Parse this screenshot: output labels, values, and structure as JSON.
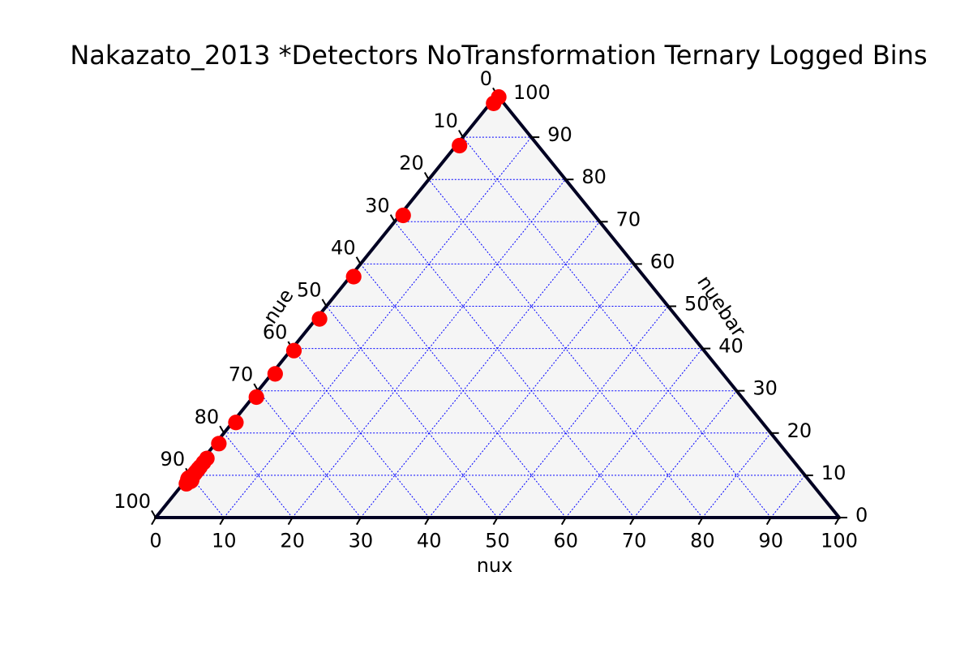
{
  "chart_data": {
    "type": "scatter",
    "subtype": "ternary",
    "title": "Nakazato_2013 *Detectors NoTransformation Ternary Logged Bins",
    "axes": {
      "bottom": {
        "label": "nux",
        "ticks": [
          "0",
          "10",
          "20",
          "30",
          "40",
          "50",
          "60",
          "70",
          "80",
          "90",
          "100"
        ]
      },
      "left": {
        "label": "nue",
        "ticks": [
          "0",
          "10",
          "20",
          "30",
          "40",
          "50",
          "60",
          "70",
          "80",
          "90",
          "100"
        ]
      },
      "right": {
        "label": "nuebar",
        "ticks": [
          "0",
          "10",
          "20",
          "30",
          "40",
          "50",
          "60",
          "70",
          "80",
          "90",
          "100"
        ]
      }
    },
    "scale": [
      0,
      100
    ],
    "grid": true,
    "colors": {
      "marker": "#ff0000",
      "grid": "#0000ff",
      "triangle_fill": "#f5f5f5",
      "triangle_edge": "#000022"
    },
    "points": [
      {
        "nux": 0.5,
        "nuebar": 99.5,
        "nue": 0.0,
        "size": 12
      },
      {
        "nux": 0.5,
        "nuebar": 98.0,
        "nue": 1.5,
        "size": 12
      },
      {
        "nux": 0.5,
        "nuebar": 88.0,
        "nue": 11.5,
        "size": 12
      },
      {
        "nux": 0.5,
        "nuebar": 71.5,
        "nue": 28.0,
        "size": 12
      },
      {
        "nux": 0.5,
        "nuebar": 57.0,
        "nue": 42.5,
        "size": 12
      },
      {
        "nux": 0.5,
        "nuebar": 47.0,
        "nue": 52.5,
        "size": 12
      },
      {
        "nux": 0.5,
        "nuebar": 39.5,
        "nue": 60.0,
        "size": 12
      },
      {
        "nux": 0.5,
        "nuebar": 34.0,
        "nue": 65.5,
        "size": 12
      },
      {
        "nux": 0.5,
        "nuebar": 28.5,
        "nue": 71.0,
        "size": 12
      },
      {
        "nux": 0.5,
        "nuebar": 22.5,
        "nue": 77.0,
        "size": 12
      },
      {
        "nux": 0.5,
        "nuebar": 17.5,
        "nue": 82.0,
        "size": 12
      },
      {
        "nux": 0.5,
        "nuebar": 14.0,
        "nue": 85.5,
        "size": 12
      },
      {
        "nux": 0.5,
        "nuebar": 13.0,
        "nue": 86.5,
        "size": 12
      },
      {
        "nux": 0.5,
        "nuebar": 12.0,
        "nue": 87.5,
        "size": 12
      },
      {
        "nux": 0.5,
        "nuebar": 11.5,
        "nue": 88.0,
        "size": 12
      },
      {
        "nux": 0.5,
        "nuebar": 11.5,
        "nue": 88.0,
        "size": 12
      },
      {
        "nux": 0.5,
        "nuebar": 11.0,
        "nue": 88.5,
        "size": 12
      },
      {
        "nux": 0.5,
        "nuebar": 11.0,
        "nue": 88.5,
        "size": 12
      },
      {
        "nux": 0.5,
        "nuebar": 10.5,
        "nue": 89.0,
        "size": 12
      },
      {
        "nux": 0.5,
        "nuebar": 10.5,
        "nue": 89.0,
        "size": 12
      },
      {
        "nux": 0.5,
        "nuebar": 10.5,
        "nue": 89.0,
        "size": 12
      },
      {
        "nux": 0.5,
        "nuebar": 10.5,
        "nue": 89.0,
        "size": 12
      },
      {
        "nux": 0.5,
        "nuebar": 10.0,
        "nue": 89.5,
        "size": 12
      },
      {
        "nux": 0.5,
        "nuebar": 10.0,
        "nue": 89.5,
        "size": 12
      },
      {
        "nux": 0.5,
        "nuebar": 10.0,
        "nue": 89.5,
        "size": 12
      },
      {
        "nux": 0.5,
        "nuebar": 9.5,
        "nue": 90.0,
        "size": 12
      },
      {
        "nux": 0.5,
        "nuebar": 9.5,
        "nue": 90.0,
        "size": 12
      },
      {
        "nux": 0.5,
        "nuebar": 9.5,
        "nue": 90.0,
        "size": 12
      },
      {
        "nux": 0.5,
        "nuebar": 9.0,
        "nue": 90.5,
        "size": 12
      },
      {
        "nux": 0.5,
        "nuebar": 8.5,
        "nue": 91.0,
        "size": 12
      },
      {
        "nux": 0.5,
        "nuebar": 8.0,
        "nue": 91.5,
        "size": 12
      },
      {
        "nux": 0.5,
        "nuebar": 9.0,
        "nue": 90.5,
        "size": 15
      }
    ]
  }
}
